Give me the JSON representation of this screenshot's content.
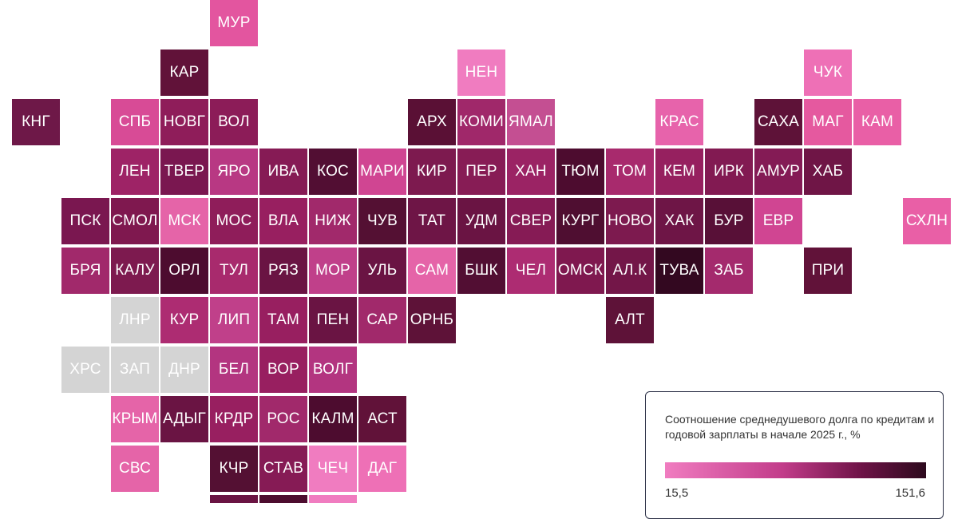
{
  "regions": [
    {
      "code": "МУР",
      "color": "#e3559f"
    },
    {
      "code": "КАР",
      "color": "#611239"
    },
    {
      "code": "НЕН",
      "color": "#f07cc0"
    },
    {
      "code": "ЧУК",
      "color": "#ee70b6"
    },
    {
      "code": "КНГ",
      "color": "#6e1848"
    },
    {
      "code": "СПБ",
      "color": "#d84b96"
    },
    {
      "code": "НОВГ",
      "color": "#8f1d5a"
    },
    {
      "code": "ВОЛ",
      "color": "#8c1c58"
    },
    {
      "code": "АРХ",
      "color": "#5a1035"
    },
    {
      "code": "КОМИ",
      "color": "#a0286a"
    },
    {
      "code": "ЯМАЛ",
      "color": "#c44f92"
    },
    {
      "code": "КРАС",
      "color": "#e763ab"
    },
    {
      "code": "САХА",
      "color": "#5e1238"
    },
    {
      "code": "МАГ",
      "color": "#e5599f"
    },
    {
      "code": "КАМ",
      "color": "#e95fa6"
    },
    {
      "code": "ЛЕН",
      "color": "#9e2366"
    },
    {
      "code": "ТВЕР",
      "color": "#7a1750"
    },
    {
      "code": "ЯРО",
      "color": "#b83883"
    },
    {
      "code": "ИВА",
      "color": "#861b55"
    },
    {
      "code": "КОС",
      "color": "#520e33"
    },
    {
      "code": "МАРИ",
      "color": "#d04592"
    },
    {
      "code": "КИР",
      "color": "#7d1a4f"
    },
    {
      "code": "ПЕР",
      "color": "#871c55"
    },
    {
      "code": "ХАН",
      "color": "#9b2364"
    },
    {
      "code": "ТЮМ",
      "color": "#4d0c2f"
    },
    {
      "code": "ТОМ",
      "color": "#a82a6d"
    },
    {
      "code": "КЕМ",
      "color": "#96205f"
    },
    {
      "code": "ИРК",
      "color": "#821a52"
    },
    {
      "code": "АМУР",
      "color": "#841b55"
    },
    {
      "code": "ХАБ",
      "color": "#6f1546"
    },
    {
      "code": "ПСК",
      "color": "#7a1750"
    },
    {
      "code": "СМОЛ",
      "color": "#7f184f"
    },
    {
      "code": "МСК",
      "color": "#e564a8"
    },
    {
      "code": "МОС",
      "color": "#8f1d5a"
    },
    {
      "code": "ВЛА",
      "color": "#981f60"
    },
    {
      "code": "НИЖ",
      "color": "#a1296b"
    },
    {
      "code": "ЧУВ",
      "color": "#541033"
    },
    {
      "code": "ТАТ",
      "color": "#6e1546"
    },
    {
      "code": "УДМ",
      "color": "#6a1443"
    },
    {
      "code": "СВЕР",
      "color": "#861b55"
    },
    {
      "code": "КУРГ",
      "color": "#4f0e31"
    },
    {
      "code": "НОВО",
      "color": "#7d1a4f"
    },
    {
      "code": "ХАК",
      "color": "#6e1546"
    },
    {
      "code": "БУР",
      "color": "#581037"
    },
    {
      "code": "ЕВР",
      "color": "#d04592"
    },
    {
      "code": "СХЛН",
      "color": "#e95fa6"
    },
    {
      "code": "БРЯ",
      "color": "#a1296b"
    },
    {
      "code": "КАЛУ",
      "color": "#7d1a4f"
    },
    {
      "code": "ОРЛ",
      "color": "#4d0c2f"
    },
    {
      "code": "ТУЛ",
      "color": "#a82a6d"
    },
    {
      "code": "РЯЗ",
      "color": "#6a1443"
    },
    {
      "code": "МОР",
      "color": "#c0408a"
    },
    {
      "code": "УЛЬ",
      "color": "#6a1443"
    },
    {
      "code": "САМ",
      "color": "#e564a8"
    },
    {
      "code": "БШК",
      "color": "#520e33"
    },
    {
      "code": "ЧЕЛ",
      "color": "#ad2c72"
    },
    {
      "code": "ОМСК",
      "color": "#7f184f"
    },
    {
      "code": "АЛ.К",
      "color": "#731648"
    },
    {
      "code": "ТУВА",
      "color": "#330820"
    },
    {
      "code": "ЗАБ",
      "color": "#a42a6d"
    },
    {
      "code": "ПРИ",
      "color": "#611239"
    },
    {
      "code": "ЛНР",
      "color": "#d4d4d4"
    },
    {
      "code": "КУР",
      "color": "#ad2c72"
    },
    {
      "code": "ЛИП",
      "color": "#c0408a"
    },
    {
      "code": "ТАМ",
      "color": "#981f60"
    },
    {
      "code": "ПЕН",
      "color": "#6a1443"
    },
    {
      "code": "САР",
      "color": "#a1296b"
    },
    {
      "code": "ОРНБ",
      "color": "#5e1238"
    },
    {
      "code": "АЛТ",
      "color": "#5e1238"
    },
    {
      "code": "ХРС",
      "color": "#d4d4d4"
    },
    {
      "code": "ЗАП",
      "color": "#d4d4d4"
    },
    {
      "code": "ДНР",
      "color": "#d4d4d4"
    },
    {
      "code": "БЕЛ",
      "color": "#b33580"
    },
    {
      "code": "ВОР",
      "color": "#981f60"
    },
    {
      "code": "ВОЛГ",
      "color": "#b33580"
    },
    {
      "code": "КРЫМ",
      "color": "#e564a8"
    },
    {
      "code": "АДЫГ",
      "color": "#6a1443"
    },
    {
      "code": "КРДР",
      "color": "#981f60"
    },
    {
      "code": "РОС",
      "color": "#a1296b"
    },
    {
      "code": "КАЛМ",
      "color": "#4d0c2f"
    },
    {
      "code": "АСТ",
      "color": "#611239"
    },
    {
      "code": "СВС",
      "color": "#e564a8"
    },
    {
      "code": "КЧР",
      "color": "#541033"
    },
    {
      "code": "СТАВ",
      "color": "#861b55"
    },
    {
      "code": "ЧЕЧ",
      "color": "#f07cc0"
    },
    {
      "code": "ДАГ",
      "color": "#ee70b6"
    }
  ],
  "legend": {
    "title": "Соотношение среднедушевого долга по кредитам и годовой зарплаты в начале 2025 г., %",
    "min": "15,5",
    "max": "151,6",
    "gradient": [
      "#f07cc0",
      "#c23c8a",
      "#6e1347",
      "#2d0a1d"
    ]
  }
}
